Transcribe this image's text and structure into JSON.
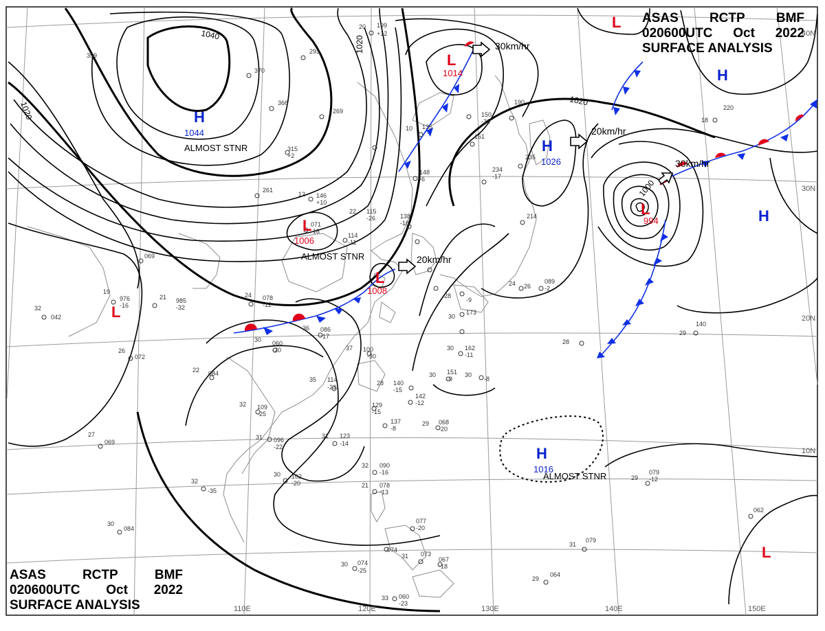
{
  "header": {
    "agency": "ASAS",
    "station": "RCTP",
    "office": "BMF",
    "time_code": "020600UTC",
    "month": "Oct",
    "year": "2022",
    "product": "SURFACE ANALYSIS"
  },
  "graticule": {
    "lon_labels": [
      "110E",
      "120E",
      "130E",
      "140E",
      "150E"
    ],
    "lat_labels": [
      "40N",
      "30N",
      "20N",
      "10N"
    ]
  },
  "isobars": [
    "1040",
    "1020",
    "1020",
    "1020",
    "1000"
  ],
  "pressure_centers": [
    {
      "type": "H",
      "value": "1044",
      "note": "ALMOST STNR"
    },
    {
      "type": "H",
      "value": "1026",
      "note": ""
    },
    {
      "type": "H",
      "value": "1016",
      "note": "ALMOST STNR"
    },
    {
      "type": "H",
      "value": "",
      "note": ""
    },
    {
      "type": "H",
      "value": "",
      "note": ""
    },
    {
      "type": "L",
      "value": "1014",
      "note": ""
    },
    {
      "type": "L",
      "value": "1006",
      "note": "ALMOST STNR"
    },
    {
      "type": "L",
      "value": "1008",
      "note": ""
    },
    {
      "type": "L",
      "value": "994",
      "note": ""
    },
    {
      "type": "L",
      "value": "",
      "note": ""
    },
    {
      "type": "L",
      "value": "",
      "note": ""
    },
    {
      "type": "L",
      "value": "",
      "note": ""
    }
  ],
  "motions": [
    {
      "speed": "30km/hr"
    },
    {
      "speed": "20km/hr"
    },
    {
      "speed": "30km/hr"
    },
    {
      "speed": "20km/hr"
    }
  ],
  "stations": [
    {
      "t": "20",
      "p": "199",
      "tend": "+12"
    },
    {
      "t": "",
      "p": "359",
      "tend": ""
    },
    {
      "t": "",
      "p": "293",
      "tend": ""
    },
    {
      "t": "",
      "p": "370",
      "tend": ""
    },
    {
      "t": "",
      "p": "366",
      "tend": ""
    },
    {
      "t": "",
      "p": "269",
      "tend": ""
    },
    {
      "t": "",
      "p": "315",
      "tend": "+2"
    },
    {
      "t": "",
      "p": "261",
      "tend": ""
    },
    {
      "t": "12",
      "p": "146",
      "tend": "+10"
    },
    {
      "t": "22",
      "p": "115",
      "tend": "-26"
    },
    {
      "t": "",
      "p": "114",
      "tend": "-11"
    },
    {
      "t": "",
      "p": "138",
      "tend": "-16"
    },
    {
      "t": "",
      "p": "071",
      "tend": "-18"
    },
    {
      "t": "",
      "p": "161",
      "tend": ""
    },
    {
      "t": "10",
      "p": "135",
      "tend": ""
    },
    {
      "t": "",
      "p": "148",
      "tend": "-6"
    },
    {
      "t": "",
      "p": "150",
      "tend": "-31"
    },
    {
      "t": "",
      "p": "234",
      "tend": "-17"
    },
    {
      "t": "",
      "p": "235",
      "tend": ""
    },
    {
      "t": "",
      "p": "190",
      "tend": ""
    },
    {
      "t": "",
      "p": "214",
      "tend": ""
    },
    {
      "t": "18",
      "p": "220",
      "tend": ""
    },
    {
      "t": "",
      "p": "069",
      "tend": ""
    },
    {
      "t": "19",
      "p": "976",
      "tend": "-16"
    },
    {
      "t": "21",
      "p": "985",
      "tend": "-32"
    },
    {
      "t": "32",
      "p": "042",
      "tend": ""
    },
    {
      "t": "24",
      "p": "078",
      "tend": "-12"
    },
    {
      "t": "36",
      "p": "086",
      "tend": "-17"
    },
    {
      "t": "30",
      "p": "060",
      "tend": "-20"
    },
    {
      "t": "26",
      "p": "072",
      "tend": ""
    },
    {
      "t": "22",
      "p": "084",
      "tend": ""
    },
    {
      "t": "37",
      "p": "100",
      "tend": "-30"
    },
    {
      "t": "35",
      "p": "114",
      "tend": "-23"
    },
    {
      "t": "28",
      "p": "140",
      "tend": "-15"
    },
    {
      "t": "",
      "p": "142",
      "tend": "-12"
    },
    {
      "t": "",
      "p": "129",
      "tend": "-15"
    },
    {
      "t": "",
      "p": "137",
      "tend": "-8"
    },
    {
      "t": "29",
      "p": "068",
      "tend": "-20"
    },
    {
      "t": "31",
      "p": "123",
      "tend": "-14"
    },
    {
      "t": "32",
      "p": "109",
      "tend": "-25"
    },
    {
      "t": "31",
      "p": "096",
      "tend": "-22"
    },
    {
      "t": "27",
      "p": "069",
      "tend": ""
    },
    {
      "t": "30",
      "p": "102",
      "tend": "-20"
    },
    {
      "t": "32",
      "p": "",
      "tend": "-35"
    },
    {
      "t": "30",
      "p": "084",
      "tend": ""
    },
    {
      "t": "32",
      "p": "090",
      "tend": "-16"
    },
    {
      "t": "21",
      "p": "078",
      "tend": "-13"
    },
    {
      "t": "",
      "p": "077",
      "tend": "-20"
    },
    {
      "t": "",
      "p": "074",
      "tend": ""
    },
    {
      "t": "31",
      "p": "073",
      "tend": ""
    },
    {
      "t": "",
      "p": "067",
      "tend": "-18"
    },
    {
      "t": "30",
      "p": "074",
      "tend": "-25"
    },
    {
      "t": "33",
      "p": "060",
      "tend": "-23"
    },
    {
      "t": "28",
      "p": "",
      "tend": "-9"
    },
    {
      "t": "30",
      "p": "",
      "tend": ""
    },
    {
      "t": "",
      "p": "173",
      "tend": ""
    },
    {
      "t": "30",
      "p": "162",
      "tend": "-11"
    },
    {
      "t": "30",
      "p": "151",
      "tend": "-9"
    },
    {
      "t": "30",
      "p": "",
      "tend": "-8"
    },
    {
      "t": "24",
      "p": "",
      "tend": ""
    },
    {
      "t": "26",
      "p": "089",
      "tend": "-2"
    },
    {
      "t": "28",
      "p": "",
      "tend": ""
    },
    {
      "t": "29",
      "p": "140",
      "tend": ""
    },
    {
      "t": "29",
      "p": "079",
      "tend": "-12"
    },
    {
      "t": "31",
      "p": "079",
      "tend": ""
    },
    {
      "t": "29",
      "p": "064",
      "tend": ""
    },
    {
      "t": "",
      "p": "062",
      "tend": ""
    }
  ],
  "colors": {
    "isobar": "#000000",
    "graticule": "#9a9a9a",
    "coast": "#8c8c8c",
    "high": "#0a22cc",
    "low": "#e0001a",
    "cold_front": "#1030e6",
    "warm_front": "#e0001a"
  }
}
